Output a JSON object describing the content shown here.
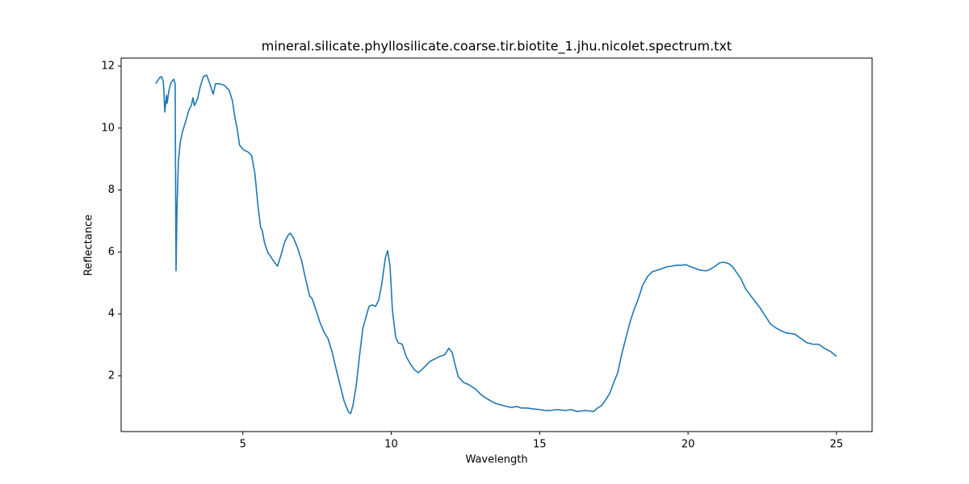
{
  "chart_data": {
    "type": "line",
    "title": "mineral.silicate.phyllosilicate.coarse.tir.biotite_1.jhu.nicolet.spectrum.txt",
    "x_label": "Wavelength",
    "y_label": "Reflectance",
    "xlim": [
      0.9,
      26.2
    ],
    "ylim": [
      0.2,
      12.26
    ],
    "xticks": [
      5,
      10,
      15,
      20,
      25
    ],
    "yticks": [
      2,
      4,
      6,
      8,
      10,
      12
    ],
    "grid": false,
    "color": "#1f77b4",
    "x": [
      2.07,
      2.13,
      2.21,
      2.26,
      2.32,
      2.34,
      2.37,
      2.43,
      2.45,
      2.51,
      2.59,
      2.67,
      2.72,
      2.75,
      2.78,
      2.83,
      2.89,
      2.97,
      3.08,
      3.18,
      3.27,
      3.32,
      3.37,
      3.48,
      3.56,
      3.67,
      3.78,
      3.89,
      4.0,
      4.08,
      4.21,
      4.38,
      4.54,
      4.65,
      4.73,
      4.81,
      4.89,
      5.03,
      5.16,
      5.3,
      5.41,
      5.51,
      5.6,
      5.65,
      5.73,
      5.84,
      5.92,
      6.06,
      6.17,
      6.27,
      6.41,
      6.52,
      6.6,
      6.71,
      6.84,
      6.98,
      7.11,
      7.25,
      7.33,
      7.47,
      7.6,
      7.74,
      7.87,
      8.01,
      8.14,
      8.28,
      8.41,
      8.55,
      8.63,
      8.71,
      8.82,
      8.93,
      9.04,
      9.15,
      9.25,
      9.36,
      9.47,
      9.58,
      9.69,
      9.8,
      9.88,
      9.96,
      10.04,
      10.15,
      10.23,
      10.37,
      10.5,
      10.64,
      10.77,
      10.91,
      11.04,
      11.18,
      11.31,
      11.48,
      11.64,
      11.8,
      11.94,
      12.05,
      12.15,
      12.26,
      12.43,
      12.62,
      12.83,
      13.02,
      13.16,
      13.35,
      13.51,
      13.7,
      13.89,
      14.05,
      14.24,
      14.38,
      14.57,
      14.78,
      15.0,
      15.19,
      15.33,
      15.6,
      15.87,
      16.06,
      16.27,
      16.54,
      16.82,
      16.95,
      17.09,
      17.22,
      17.36,
      17.49,
      17.63,
      17.76,
      17.9,
      18.04,
      18.17,
      18.31,
      18.47,
      18.63,
      18.79,
      18.96,
      19.12,
      19.28,
      19.44,
      19.61,
      19.77,
      19.93,
      20.09,
      20.26,
      20.42,
      20.61,
      20.75,
      20.91,
      21.07,
      21.21,
      21.37,
      21.5,
      21.64,
      21.77,
      21.94,
      22.1,
      22.26,
      22.43,
      22.59,
      22.78,
      22.97,
      23.13,
      23.32,
      23.59,
      23.81,
      24.0,
      24.21,
      24.4,
      24.59,
      24.81,
      25.0
    ],
    "values": [
      11.43,
      11.53,
      11.64,
      11.66,
      11.51,
      11.22,
      10.52,
      11.06,
      10.8,
      11.22,
      11.48,
      11.58,
      11.43,
      5.39,
      7.36,
      8.93,
      9.53,
      9.89,
      10.23,
      10.57,
      10.75,
      10.98,
      10.72,
      10.96,
      11.32,
      11.66,
      11.71,
      11.43,
      11.09,
      11.43,
      11.43,
      11.38,
      11.22,
      10.88,
      10.36,
      9.97,
      9.45,
      9.29,
      9.24,
      9.11,
      8.51,
      7.49,
      6.79,
      6.71,
      6.3,
      5.98,
      5.88,
      5.67,
      5.54,
      5.85,
      6.32,
      6.53,
      6.61,
      6.45,
      6.14,
      5.72,
      5.15,
      4.58,
      4.5,
      4.11,
      3.72,
      3.41,
      3.2,
      2.76,
      2.23,
      1.69,
      1.19,
      0.85,
      0.78,
      1.04,
      1.69,
      2.63,
      3.51,
      3.9,
      4.24,
      4.29,
      4.24,
      4.45,
      5.02,
      5.8,
      6.04,
      5.54,
      4.11,
      3.25,
      3.07,
      3.02,
      2.63,
      2.39,
      2.21,
      2.1,
      2.21,
      2.34,
      2.47,
      2.55,
      2.63,
      2.68,
      2.89,
      2.76,
      2.36,
      1.97,
      1.79,
      1.71,
      1.58,
      1.4,
      1.3,
      1.19,
      1.11,
      1.06,
      1.01,
      0.98,
      1.01,
      0.96,
      0.96,
      0.93,
      0.91,
      0.88,
      0.88,
      0.91,
      0.88,
      0.91,
      0.85,
      0.88,
      0.85,
      0.96,
      1.04,
      1.22,
      1.43,
      1.77,
      2.1,
      2.68,
      3.2,
      3.72,
      4.11,
      4.45,
      4.92,
      5.2,
      5.36,
      5.41,
      5.46,
      5.52,
      5.54,
      5.57,
      5.57,
      5.59,
      5.52,
      5.46,
      5.41,
      5.39,
      5.44,
      5.54,
      5.65,
      5.67,
      5.62,
      5.52,
      5.33,
      5.15,
      4.81,
      4.6,
      4.4,
      4.19,
      3.95,
      3.67,
      3.54,
      3.46,
      3.38,
      3.35,
      3.2,
      3.07,
      3.02,
      3.02,
      2.89,
      2.78,
      2.63
    ]
  }
}
